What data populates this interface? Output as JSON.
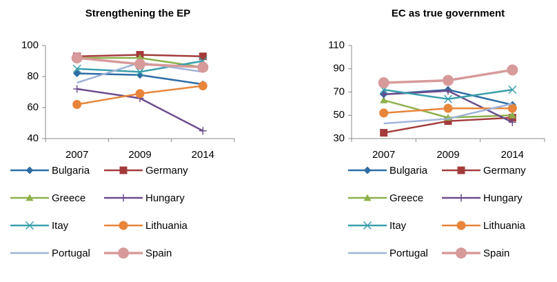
{
  "chart_data": [
    {
      "type": "line",
      "title": "Strengthening the EP",
      "categories": [
        "2007",
        "2009",
        "2014"
      ],
      "ylim": [
        40,
        100
      ],
      "yticks": [
        40,
        60,
        80,
        100
      ],
      "grid": false,
      "series": [
        {
          "name": "Bulgaria",
          "color": "#2e6ca4",
          "marker": "diamond",
          "values": [
            82,
            81,
            75
          ]
        },
        {
          "name": "Germany",
          "color": "#a33b3b",
          "marker": "square",
          "values": [
            93,
            94,
            93
          ]
        },
        {
          "name": "Greece",
          "color": "#8db04a",
          "marker": "triangle",
          "values": [
            92,
            92,
            86
          ]
        },
        {
          "name": "Hungary",
          "color": "#6b4c8c",
          "marker": "plus",
          "values": [
            72,
            66,
            45
          ]
        },
        {
          "name": "Itay",
          "color": "#3a9fac",
          "marker": "x",
          "values": [
            85,
            83,
            90
          ]
        },
        {
          "name": "Lithuania",
          "color": "#e8853a",
          "marker": "circle",
          "values": [
            62,
            69,
            74
          ]
        },
        {
          "name": "Portugal",
          "color": "#9db3d8",
          "marker": "none",
          "values": [
            76,
            89,
            83
          ]
        },
        {
          "name": "Spain",
          "color": "#d79a9a",
          "marker": "circle",
          "values": [
            92,
            88,
            86
          ]
        }
      ]
    },
    {
      "type": "line",
      "title": "EC as true government",
      "categories": [
        "2007",
        "2009",
        "2014"
      ],
      "ylim": [
        30,
        110
      ],
      "yticks": [
        30,
        50,
        70,
        90,
        110
      ],
      "grid": false,
      "series": [
        {
          "name": "Bulgaria",
          "color": "#2e6ca4",
          "marker": "diamond",
          "values": [
            68,
            72,
            59
          ]
        },
        {
          "name": "Germany",
          "color": "#a33b3b",
          "marker": "square",
          "values": [
            35,
            45,
            48
          ]
        },
        {
          "name": "Greece",
          "color": "#8db04a",
          "marker": "triangle",
          "values": [
            63,
            48,
            50
          ]
        },
        {
          "name": "Hungary",
          "color": "#6b4c8c",
          "marker": "plus",
          "values": [
            68,
            71,
            44
          ]
        },
        {
          "name": "Itay",
          "color": "#3a9fac",
          "marker": "x",
          "values": [
            72,
            64,
            72
          ]
        },
        {
          "name": "Lithuania",
          "color": "#e8853a",
          "marker": "circle",
          "values": [
            52,
            56,
            56
          ]
        },
        {
          "name": "Portugal",
          "color": "#9db3d8",
          "marker": "none",
          "values": [
            43,
            47,
            60
          ]
        },
        {
          "name": "Spain",
          "color": "#d79a9a",
          "marker": "circle",
          "values": [
            78,
            80,
            89
          ]
        }
      ]
    }
  ]
}
